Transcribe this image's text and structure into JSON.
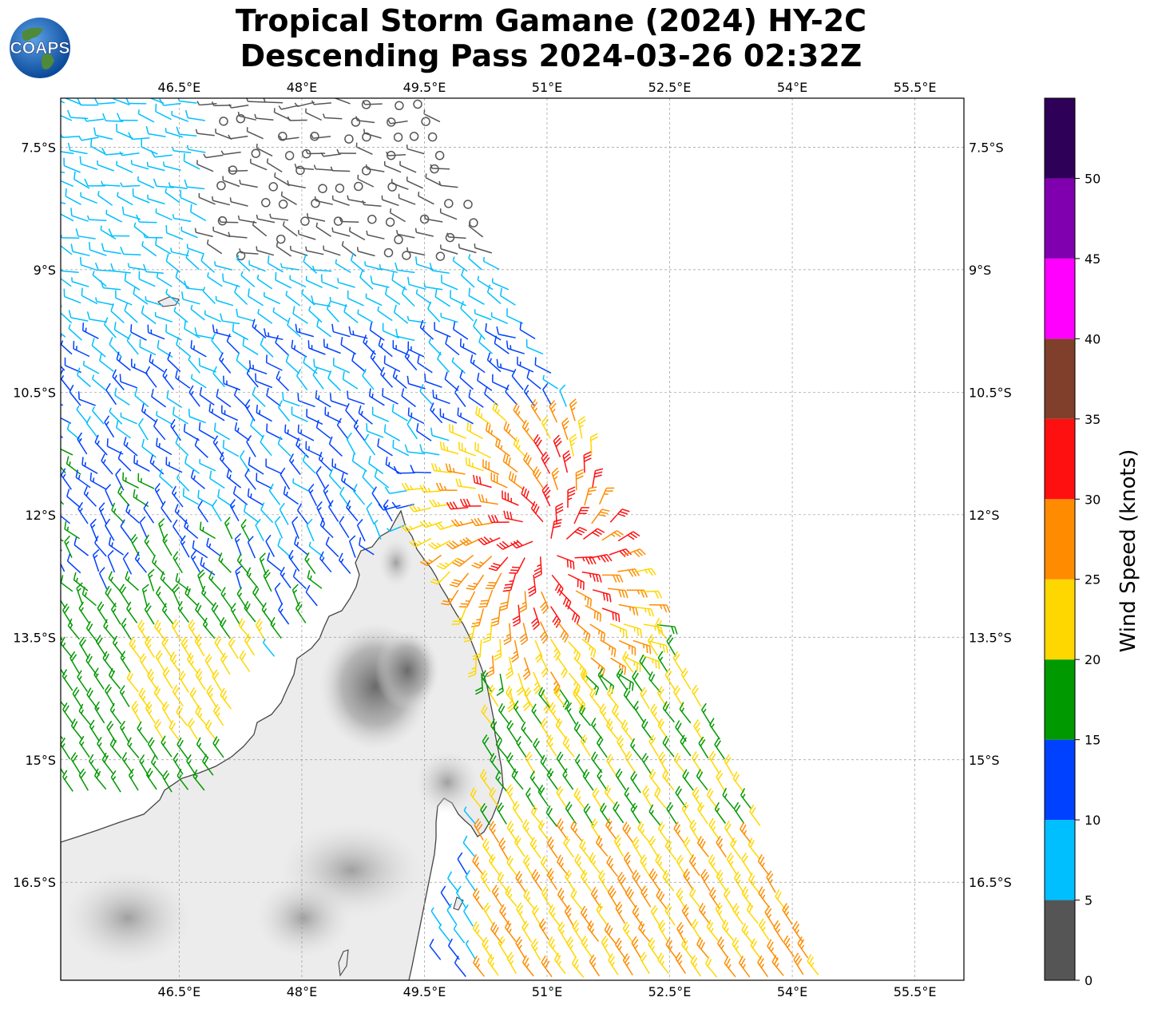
{
  "title": {
    "line1": "Tropical Storm Gamane (2024) HY-2C",
    "line2": "Descending Pass 2024-03-26 02:32Z"
  },
  "logo": {
    "text": "COAPS",
    "icon": "globe-icon"
  },
  "map": {
    "lon_range": [
      45.05,
      56.1
    ],
    "lat_range": [
      -17.7,
      -6.9
    ],
    "lon_ticks": [
      "46.5°E",
      "48°E",
      "49.5°E",
      "51°E",
      "52.5°E",
      "54°E",
      "55.5°E"
    ],
    "lon_tick_values": [
      46.5,
      48.0,
      49.5,
      51.0,
      52.5,
      54.0,
      55.5
    ],
    "lat_ticks": [
      "7.5°S",
      "9°S",
      "10.5°S",
      "12°S",
      "13.5°S",
      "15°S",
      "16.5°S"
    ],
    "lat_tick_values": [
      -7.5,
      -9.0,
      -10.5,
      -12.0,
      -13.5,
      -15.0,
      -16.5
    ],
    "gridlines": true,
    "storm_center": {
      "lon": 51.0,
      "lat": -12.35
    }
  },
  "colorbar": {
    "label": "Wind Speed (knots)",
    "tick_labels": [
      "0",
      "5",
      "10",
      "15",
      "20",
      "25",
      "30",
      "35",
      "40",
      "45",
      "50"
    ],
    "bins": [
      {
        "min": 0,
        "max": 5,
        "color": "#555555"
      },
      {
        "min": 5,
        "max": 10,
        "color": "#00bfff"
      },
      {
        "min": 10,
        "max": 15,
        "color": "#0040ff"
      },
      {
        "min": 15,
        "max": 20,
        "color": "#009900"
      },
      {
        "min": 20,
        "max": 25,
        "color": "#ffd700"
      },
      {
        "min": 25,
        "max": 30,
        "color": "#ff8c00"
      },
      {
        "min": 30,
        "max": 35,
        "color": "#ff1010"
      },
      {
        "min": 35,
        "max": 40,
        "color": "#7f3f2a"
      },
      {
        "min": 40,
        "max": 45,
        "color": "#ff00ff"
      },
      {
        "min": 45,
        "max": 50,
        "color": "#8000b0"
      },
      {
        "min": 50,
        "max": 55,
        "color": "#2e0057"
      }
    ]
  }
}
